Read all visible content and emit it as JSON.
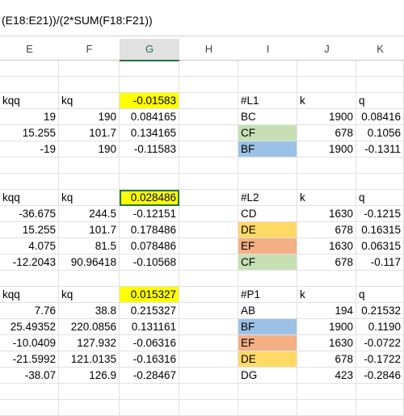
{
  "formula_bar": {
    "text": "(E18:E21))/(2*SUM(F18:F21))"
  },
  "columns": [
    "E",
    "F",
    "G",
    "H",
    "I",
    "J",
    "K"
  ],
  "selected_column": "G",
  "blocks": [
    {
      "header": {
        "E": "kqq",
        "F": "kq",
        "G": "-0.01583",
        "I": "#L1",
        "J": "k",
        "K": "q"
      },
      "rows": [
        {
          "E": "19",
          "F": "190",
          "G": "0.084165",
          "I": "BC",
          "J": "1900",
          "K": "0.08416",
          "color": ""
        },
        {
          "E": "15.255",
          "F": "101.7",
          "G": "0.134165",
          "I": "CF",
          "J": "678",
          "K": "0.1056",
          "color": "green"
        },
        {
          "E": "-19",
          "F": "190",
          "G": "-0.11583",
          "I": "BF",
          "J": "1900",
          "K": "-0.1311",
          "color": "blue"
        }
      ]
    },
    {
      "header": {
        "E": "kqq",
        "F": "kq",
        "G": "0.028486",
        "I": "#L2",
        "J": "k",
        "K": "q"
      },
      "rows": [
        {
          "E": "-36.675",
          "F": "244.5",
          "G": "-0.12151",
          "I": "CD",
          "J": "1630",
          "K": "-0.1215",
          "color": ""
        },
        {
          "E": "15.255",
          "F": "101.7",
          "G": "0.178486",
          "I": "DE",
          "J": "678",
          "K": "0.16315",
          "color": "gold"
        },
        {
          "E": "4.075",
          "F": "81.5",
          "G": "0.078486",
          "I": "EF",
          "J": "1630",
          "K": "0.06315",
          "color": "orange"
        },
        {
          "E": "-12.2043",
          "F": "90.96418",
          "G": "-0.10568",
          "I": "CF",
          "J": "678",
          "K": "-0.117",
          "color": "green"
        }
      ]
    },
    {
      "header": {
        "E": "kqq",
        "F": "kq",
        "G": "0.015327",
        "I": "#P1",
        "J": "k",
        "K": "q"
      },
      "rows": [
        {
          "E": "7.76",
          "F": "38.8",
          "G": "0.215327",
          "I": "AB",
          "J": "194",
          "K": "0.21532",
          "color": ""
        },
        {
          "E": "25.49352",
          "F": "220.0856",
          "G": "0.131161",
          "I": "BF",
          "J": "1900",
          "K": "0.1190",
          "color": "blue"
        },
        {
          "E": "-10.0409",
          "F": "127.932",
          "G": "-0.06316",
          "I": "EF",
          "J": "1630",
          "K": "-0.0722",
          "color": "orange"
        },
        {
          "E": "-21.5992",
          "F": "121.0135",
          "G": "-0.16316",
          "I": "DE",
          "J": "678",
          "K": "-0.1722",
          "color": "gold"
        },
        {
          "E": "-38.07",
          "F": "126.9",
          "G": "-0.28467",
          "I": "DG",
          "J": "423",
          "K": "-0.2846",
          "color": ""
        }
      ]
    }
  ]
}
